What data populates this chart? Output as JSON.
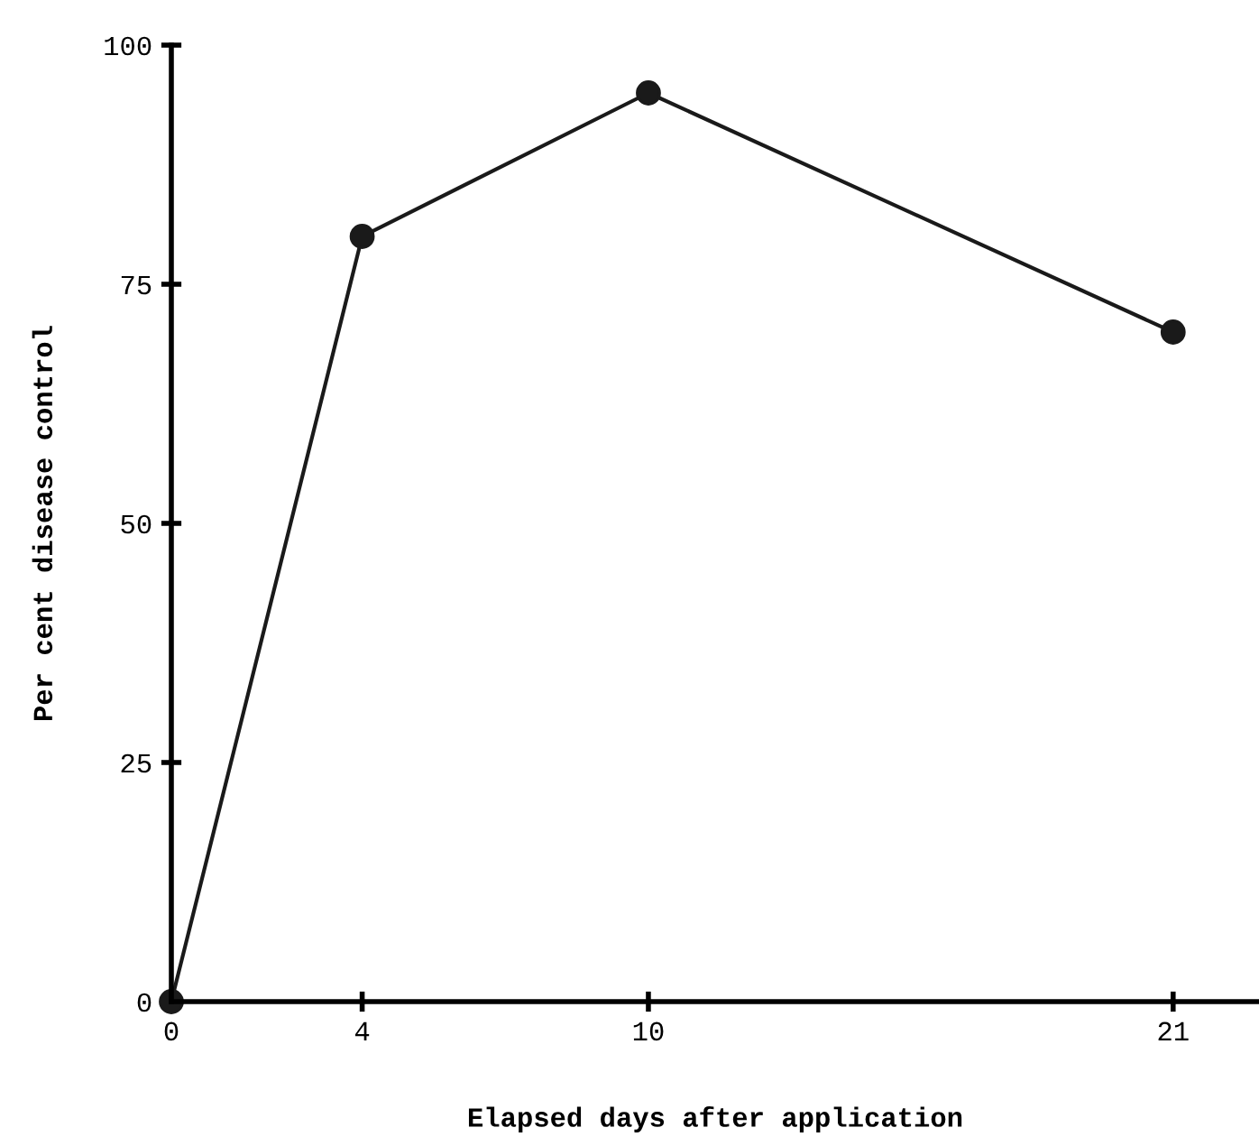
{
  "chart_data": {
    "type": "line",
    "xlabel": "Elapsed days after application",
    "ylabel": "Per cent disease control",
    "x": [
      0,
      4,
      10,
      21
    ],
    "series": [
      {
        "color": "#1a1a1a",
        "values": [
          0,
          80,
          95,
          70
        ]
      }
    ],
    "xlim": [
      0,
      22.8
    ],
    "xticks": [
      0,
      4,
      10,
      21
    ],
    "ylim": [
      0,
      100
    ],
    "yticks": [
      0,
      25,
      50,
      75,
      100
    ],
    "marker": "circle",
    "line_style": "solid",
    "grid": false
  }
}
